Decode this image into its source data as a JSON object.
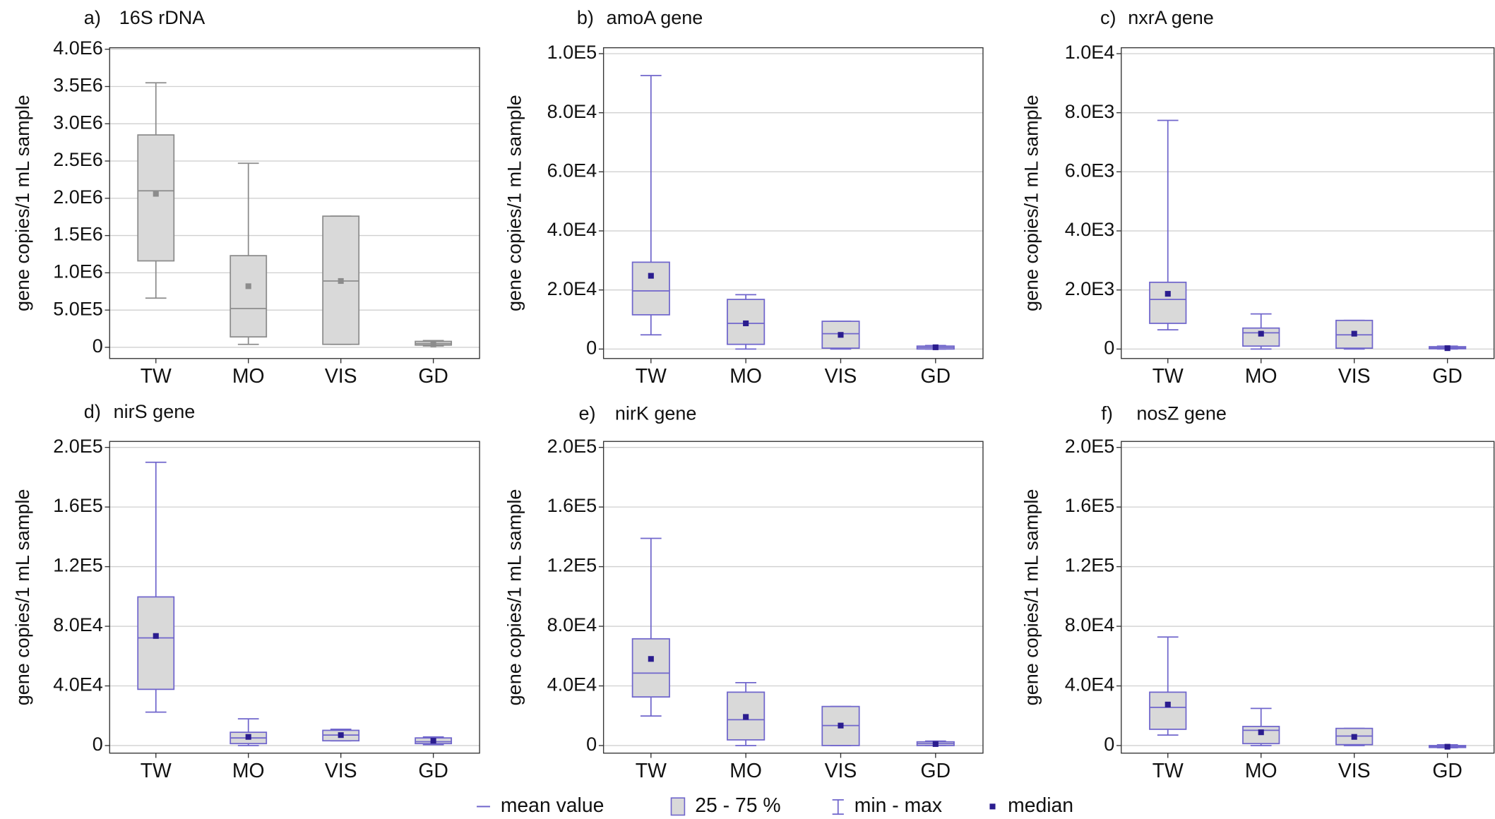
{
  "chart_data": [
    {
      "type": "box",
      "panel_label": "a)",
      "title": "16S rDNA",
      "ylabel": "gene copies/1 mL sample",
      "categories": [
        "TW",
        "MO",
        "VIS",
        "GD"
      ],
      "min": [
        660000,
        40000,
        40000,
        20000
      ],
      "q1": [
        1160000,
        140000,
        40000,
        30000
      ],
      "mean": [
        2100000,
        520000,
        890000,
        50000
      ],
      "median": [
        2060000,
        820000,
        890000,
        40000
      ],
      "q3": [
        2850000,
        1230000,
        1760000,
        80000
      ],
      "max": [
        3550000,
        2470000,
        1760000,
        90000
      ],
      "ylim": [
        -150000,
        4020000
      ],
      "yticks": [
        0,
        {
          "value": 500000,
          "label": "5.0E5"
        },
        {
          "value": 1000000,
          "label": "1.0E6"
        },
        {
          "value": 1500000,
          "label": "1.5E6"
        },
        {
          "value": 2000000,
          "label": "2.0E6"
        },
        {
          "value": 2500000,
          "label": "2.5E6"
        },
        {
          "value": 3000000,
          "label": "3.0E6"
        },
        {
          "value": 3500000,
          "label": "3.5E6"
        },
        {
          "value": 4000000,
          "label": "4.0E6"
        }
      ],
      "grid": true,
      "line_color": "#8c8c8c",
      "box_color": "#d9d9d9",
      "median_color": "#8c8c8c"
    },
    {
      "type": "box",
      "panel_label": "b)",
      "title": "amoA gene",
      "ylabel": "gene copies/1 mL sample",
      "categories": [
        "TW",
        "MO",
        "VIS",
        "GD"
      ],
      "min": [
        4800,
        0,
        0,
        0
      ],
      "q1": [
        11600,
        1600,
        300,
        0
      ],
      "mean": [
        19700,
        8700,
        5200,
        500
      ],
      "median": [
        24800,
        8700,
        4800,
        600
      ],
      "q3": [
        29400,
        16800,
        9400,
        1000
      ],
      "max": [
        92600,
        18400,
        9400,
        1200
      ],
      "ylim": [
        -3200,
        102000
      ],
      "yticks": [
        0,
        {
          "value": 20000,
          "label": "2.0E4"
        },
        {
          "value": 40000,
          "label": "4.0E4"
        },
        {
          "value": 60000,
          "label": "6.0E4"
        },
        {
          "value": 80000,
          "label": "8.0E4"
        },
        {
          "value": 100000,
          "label": "1.0E5"
        }
      ],
      "grid": true,
      "line_color": "#7066cc",
      "box_color": "#d9d9d9",
      "median_color": "#2b1d8f"
    },
    {
      "type": "box",
      "panel_label": "c)",
      "title": "nxrA gene",
      "ylabel": "gene copies/1 mL sample",
      "categories": [
        "TW",
        "MO",
        "VIS",
        "GD"
      ],
      "min": [
        650,
        0,
        0,
        0
      ],
      "q1": [
        870,
        100,
        30,
        10
      ],
      "mean": [
        1680,
        550,
        480,
        40
      ],
      "median": [
        1870,
        520,
        520,
        30
      ],
      "q3": [
        2260,
        710,
        970,
        80
      ],
      "max": [
        7740,
        1190,
        970,
        100
      ],
      "ylim": [
        -320,
        10200
      ],
      "yticks": [
        0,
        {
          "value": 2000,
          "label": "2.0E3"
        },
        {
          "value": 4000,
          "label": "4.0E3"
        },
        {
          "value": 6000,
          "label": "6.0E3"
        },
        {
          "value": 8000,
          "label": "8.0E3"
        },
        {
          "value": 10000,
          "label": "1.0E4"
        }
      ],
      "grid": true,
      "line_color": "#7066cc",
      "box_color": "#d9d9d9",
      "median_color": "#2b1d8f"
    },
    {
      "type": "box",
      "panel_label": "d)",
      "title": "nirS gene",
      "ylabel": "gene copies/1 mL sample",
      "categories": [
        "TW",
        "MO",
        "VIS",
        "GD"
      ],
      "min": [
        22400,
        0,
        3200,
        600
      ],
      "q1": [
        37700,
        1300,
        3200,
        1300
      ],
      "mean": [
        72200,
        5100,
        7000,
        2600
      ],
      "median": [
        73500,
        5800,
        7000,
        3200
      ],
      "q3": [
        99700,
        8900,
        10200,
        5100
      ],
      "max": [
        190000,
        17900,
        10900,
        5800
      ],
      "ylim": [
        -5100,
        204000
      ],
      "yticks": [
        0,
        {
          "value": 40000,
          "label": "4.0E4"
        },
        {
          "value": 80000,
          "label": "8.0E4"
        },
        {
          "value": 120000,
          "label": "1.2E5"
        },
        {
          "value": 160000,
          "label": "1.6E5"
        },
        {
          "value": 200000,
          "label": "2.0E5"
        }
      ],
      "grid": true,
      "line_color": "#7066cc",
      "box_color": "#d9d9d9",
      "median_color": "#2b1d8f"
    },
    {
      "type": "box",
      "panel_label": "e)",
      "title": "nirK gene",
      "ylabel": "gene copies/1 mL sample",
      "categories": [
        "TW",
        "MO",
        "VIS",
        "GD"
      ],
      "min": [
        19800,
        0,
        0,
        0
      ],
      "q1": [
        32600,
        3800,
        0,
        0
      ],
      "mean": [
        48600,
        17300,
        13400,
        1300
      ],
      "median": [
        58100,
        19200,
        13400,
        1000
      ],
      "q3": [
        71600,
        35800,
        26200,
        2500
      ],
      "max": [
        139000,
        42200,
        26200,
        3000
      ],
      "ylim": [
        -5100,
        204000
      ],
      "yticks": [
        0,
        {
          "value": 40000,
          "label": "4.0E4"
        },
        {
          "value": 80000,
          "label": "8.0E4"
        },
        {
          "value": 120000,
          "label": "1.2E5"
        },
        {
          "value": 160000,
          "label": "1.6E5"
        },
        {
          "value": 200000,
          "label": "2.0E5"
        }
      ],
      "grid": true,
      "line_color": "#7066cc",
      "box_color": "#d9d9d9",
      "median_color": "#2b1d8f"
    },
    {
      "type": "box",
      "panel_label": "f)",
      "title": "nosZ gene",
      "ylabel": "gene copies/1 mL sample",
      "categories": [
        "TW",
        "MO",
        "VIS",
        "GD"
      ],
      "min": [
        7000,
        0,
        0,
        -1500
      ],
      "q1": [
        10900,
        1300,
        600,
        -1300
      ],
      "mean": [
        25600,
        10200,
        6400,
        -700
      ],
      "median": [
        27500,
        8900,
        5800,
        -800
      ],
      "q3": [
        35800,
        12800,
        11500,
        0
      ],
      "max": [
        72800,
        24900,
        11500,
        500
      ],
      "ylim": [
        -5100,
        204000
      ],
      "yticks": [
        0,
        {
          "value": 40000,
          "label": "4.0E4"
        },
        {
          "value": 80000,
          "label": "8.0E4"
        },
        {
          "value": 120000,
          "label": "1.2E5"
        },
        {
          "value": 160000,
          "label": "1.6E5"
        },
        {
          "value": 200000,
          "label": "2.0E5"
        }
      ],
      "grid": true,
      "line_color": "#7066cc",
      "box_color": "#d9d9d9",
      "median_color": "#2b1d8f"
    }
  ],
  "legend": [
    "mean value",
    "25 - 75 %",
    "min - max",
    "median"
  ]
}
